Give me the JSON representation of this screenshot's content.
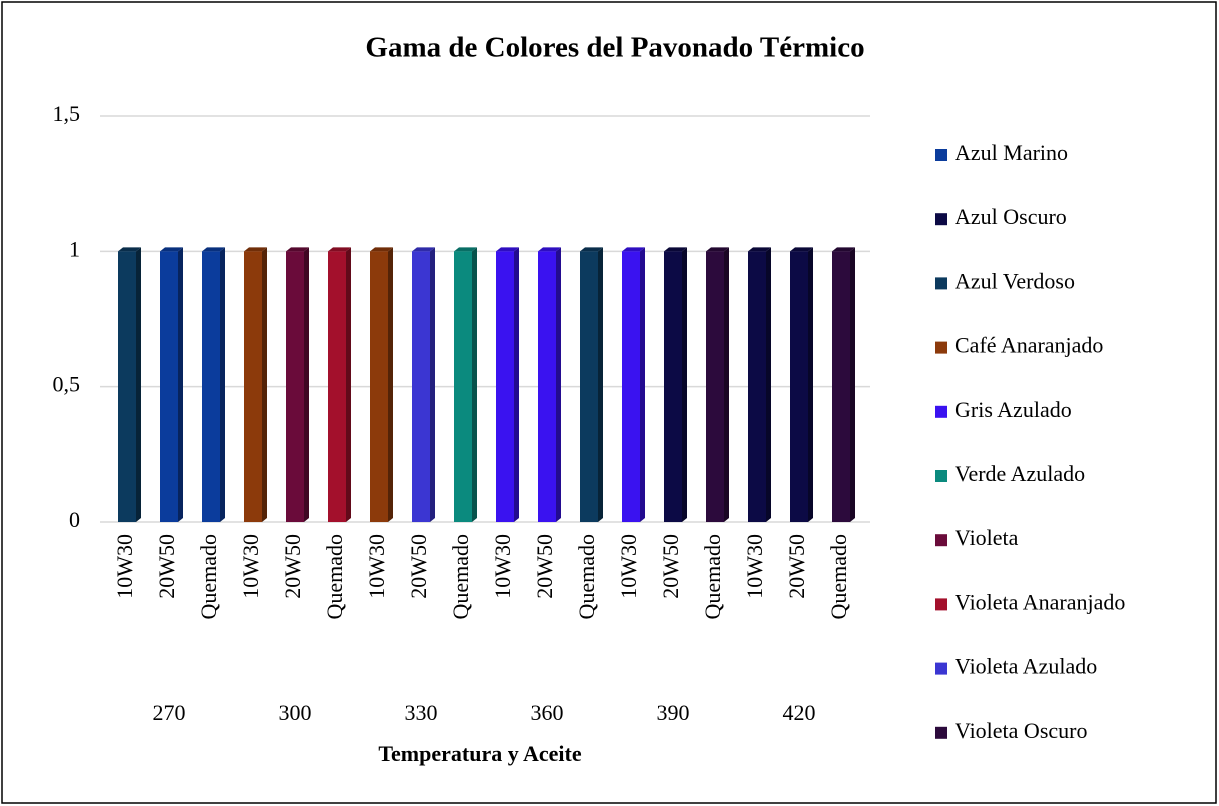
{
  "chart_data": {
    "type": "bar",
    "title": "Gama de Colores del Pavonado Térmico",
    "x_label": "Temperatura y Aceite",
    "categories": [
      "10W30",
      "20W50",
      "Quemado",
      "10W30",
      "20W50",
      "Quemado",
      "10W30",
      "20W50",
      "Quemado",
      "10W30",
      "20W50",
      "Quemado",
      "10W30",
      "20W50",
      "Quemado",
      "10W30",
      "20W50",
      "Quemado"
    ],
    "groups": [
      "270",
      "300",
      "330",
      "360",
      "390",
      "420"
    ],
    "series": [
      {
        "name": "Azul Marino",
        "color": "#0b3c9c",
        "values": [
          null,
          1,
          1,
          null,
          null,
          null,
          null,
          null,
          null,
          null,
          null,
          null,
          null,
          null,
          null,
          null,
          null,
          null
        ]
      },
      {
        "name": "Azul Oscuro",
        "color": "#0c0a45",
        "values": [
          null,
          null,
          null,
          null,
          null,
          null,
          null,
          null,
          null,
          null,
          null,
          null,
          null,
          1,
          null,
          1,
          1,
          null
        ]
      },
      {
        "name": "Azul Verdoso",
        "color": "#0c3a5e",
        "values": [
          1,
          null,
          null,
          null,
          null,
          null,
          null,
          null,
          null,
          null,
          null,
          1,
          null,
          null,
          null,
          null,
          null,
          null
        ]
      },
      {
        "name": "Café Anaranjado",
        "color": "#8c3a0b",
        "values": [
          null,
          null,
          null,
          1,
          null,
          null,
          1,
          null,
          null,
          null,
          null,
          null,
          null,
          null,
          null,
          null,
          null,
          null
        ]
      },
      {
        "name": "Gris Azulado",
        "color": "#3a12f0",
        "values": [
          null,
          null,
          null,
          null,
          null,
          null,
          null,
          null,
          null,
          1,
          1,
          null,
          1,
          null,
          null,
          null,
          null,
          null
        ]
      },
      {
        "name": "Verde Azulado",
        "color": "#0b8a7e",
        "values": [
          null,
          null,
          null,
          null,
          null,
          null,
          null,
          null,
          1,
          null,
          null,
          null,
          null,
          null,
          null,
          null,
          null,
          null
        ]
      },
      {
        "name": "Violeta",
        "color": "#6a0b3a",
        "values": [
          null,
          null,
          null,
          null,
          1,
          null,
          null,
          null,
          null,
          null,
          null,
          null,
          null,
          null,
          null,
          null,
          null,
          null
        ]
      },
      {
        "name": "Violeta Anaranjado",
        "color": "#a3102c",
        "values": [
          null,
          null,
          null,
          null,
          null,
          1,
          null,
          null,
          null,
          null,
          null,
          null,
          null,
          null,
          null,
          null,
          null,
          null
        ]
      },
      {
        "name": "Violeta Azulado",
        "color": "#3b36d2",
        "values": [
          null,
          null,
          null,
          null,
          null,
          null,
          null,
          1,
          null,
          null,
          null,
          null,
          null,
          null,
          null,
          null,
          null,
          null
        ]
      },
      {
        "name": "Violeta Oscuro",
        "color": "#2c0a3c",
        "values": [
          null,
          null,
          null,
          null,
          null,
          null,
          null,
          null,
          null,
          null,
          null,
          null,
          null,
          null,
          1,
          null,
          null,
          1
        ]
      }
    ],
    "ylim": [
      0,
      1.5
    ],
    "yticks": [
      0,
      {
        "value": 0.5,
        "label": "0,5"
      },
      1,
      {
        "value": 1.5,
        "label": "1,5"
      }
    ],
    "grid": true,
    "legend": "right"
  }
}
